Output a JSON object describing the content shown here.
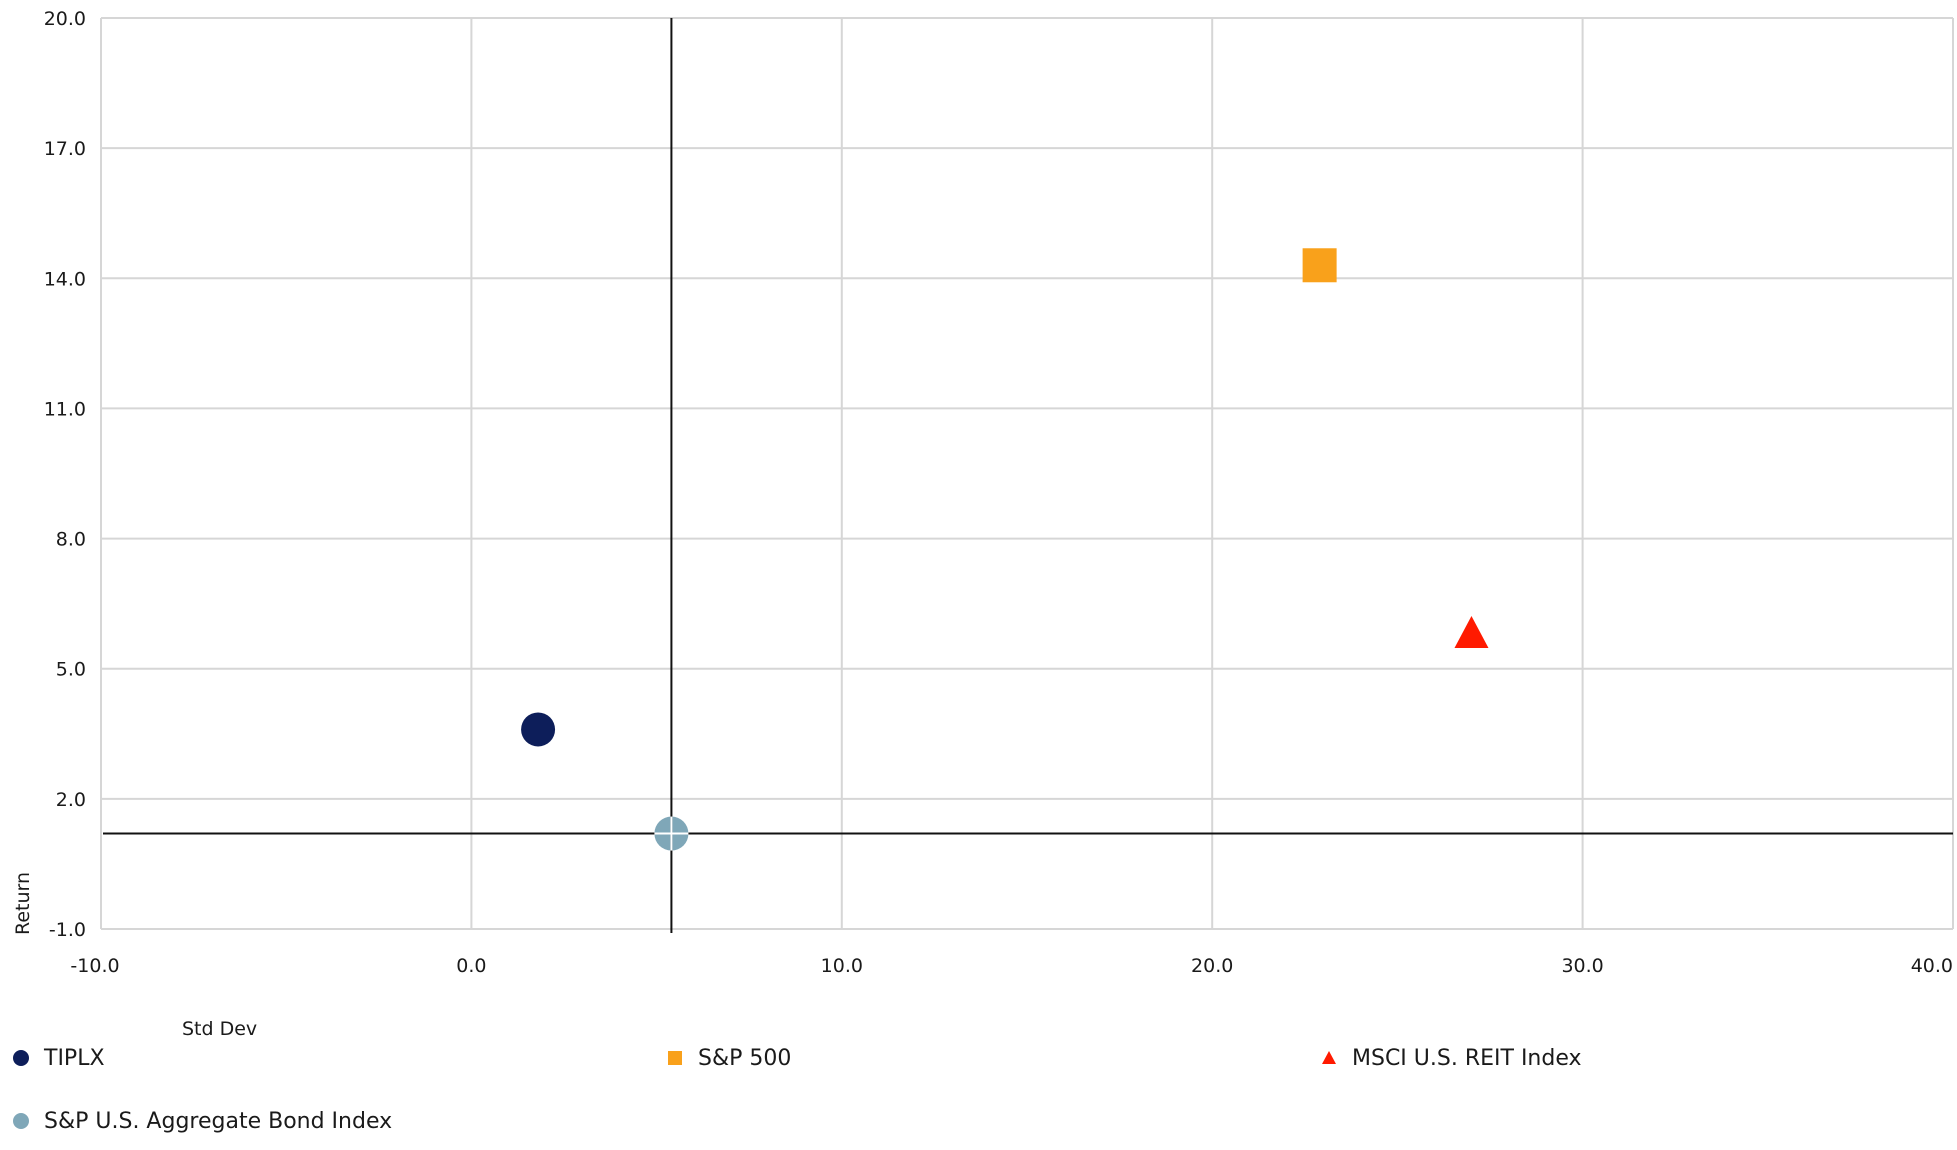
{
  "chart_data": {
    "type": "scatter",
    "title": "",
    "xlabel": "Std Dev",
    "ylabel": "Return",
    "xlim": [
      -10.0,
      40.0
    ],
    "ylim": [
      -1.0,
      20.0
    ],
    "x_ticks": [
      "-10.0",
      "0.0",
      "10.0",
      "20.0",
      "30.0",
      "40.0"
    ],
    "y_ticks": [
      "-1.0",
      "2.0",
      "5.0",
      "8.0",
      "11.0",
      "14.0",
      "17.0",
      "20.0"
    ],
    "grid": true,
    "crosshair": {
      "x": 5.4,
      "y": 1.2
    },
    "legend_position": "bottom",
    "series": [
      {
        "name": "TIPLX",
        "x": 1.8,
        "y": 3.6,
        "marker": "circle",
        "color": "#0d1e5a"
      },
      {
        "name": "S&P 500",
        "x": 22.9,
        "y": 14.3,
        "marker": "square",
        "color": "#f9a11b"
      },
      {
        "name": "MSCI U.S. REIT Index",
        "x": 27.0,
        "y": 5.8,
        "marker": "triangle",
        "color": "#ff1a00"
      },
      {
        "name": "S&P U.S. Aggregate Bond Index",
        "x": 5.4,
        "y": 1.2,
        "marker": "circle",
        "color": "#7fa7b8"
      }
    ]
  }
}
